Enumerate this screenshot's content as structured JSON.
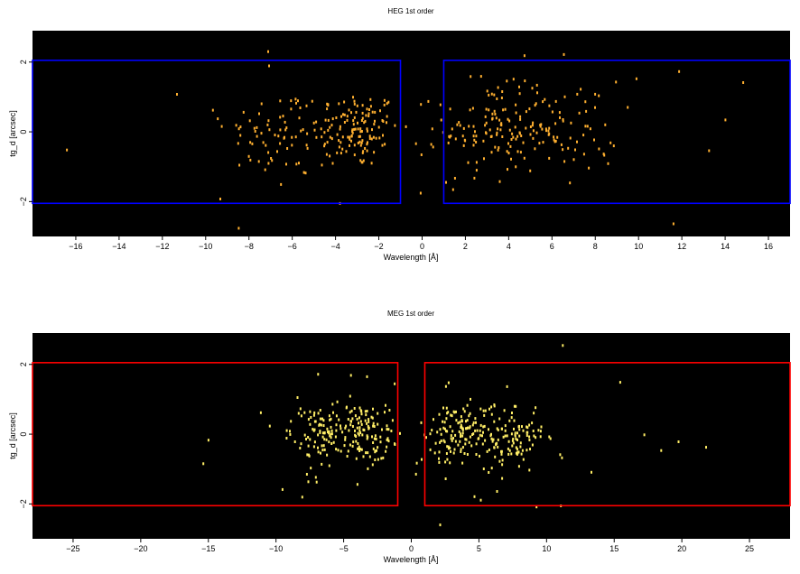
{
  "chart_data": [
    {
      "type": "scatter",
      "title": "HEG 1st order",
      "xlabel": "Wavelength [Å]",
      "ylabel": "tg_d [arcsec]",
      "xlim": [
        -18,
        17
      ],
      "ylim": [
        -3.0,
        2.9
      ],
      "xticks": [
        -16,
        -14,
        -12,
        -10,
        -8,
        -6,
        -4,
        -2,
        0,
        2,
        4,
        6,
        8,
        10,
        12,
        14,
        16
      ],
      "yticks": [
        -2,
        0,
        2
      ],
      "background": "#000000",
      "region_color": "#0000ff",
      "regions": [
        {
          "x": [
            -18,
            -1.0
          ],
          "y": [
            -2.05,
            2.05
          ]
        },
        {
          "x": [
            1.0,
            17
          ],
          "y": [
            -2.05,
            2.05
          ]
        }
      ],
      "series": [
        {
          "color": "#ffb030",
          "clusters": [
            {
              "xc": -3.1,
              "yc": 0.1,
              "sx": 1.0,
              "sy": 0.55,
              "n": 130
            },
            {
              "xc": -6.5,
              "yc": 0.0,
              "sx": 1.3,
              "sy": 0.65,
              "n": 70
            },
            {
              "xc": 3.2,
              "yc": 0.1,
              "sx": 1.1,
              "sy": 0.6,
              "n": 110
            },
            {
              "xc": 6.4,
              "yc": 0.2,
              "sx": 1.3,
              "sy": 0.65,
              "n": 70
            },
            {
              "xc": 0.0,
              "yc": 0.0,
              "sx": 9.5,
              "sy": 1.7,
              "n": 45
            }
          ]
        }
      ]
    },
    {
      "type": "scatter",
      "title": "MEG 1st order",
      "xlabel": "Wavelength [Å]",
      "ylabel": "tg_d [arcsec]",
      "xlim": [
        -28,
        28
      ],
      "ylim": [
        -3.0,
        2.9
      ],
      "xticks": [
        -25,
        -20,
        -15,
        -10,
        -5,
        0,
        5,
        10,
        15,
        20,
        25
      ],
      "yticks": [
        -2,
        0,
        2
      ],
      "background": "#000000",
      "region_color": "#ff0000",
      "regions": [
        {
          "x": [
            -28,
            -1.0
          ],
          "y": [
            -2.05,
            2.05
          ]
        },
        {
          "x": [
            1.0,
            28
          ],
          "y": [
            -2.05,
            2.05
          ]
        }
      ],
      "series": [
        {
          "color": "#ffee66",
          "clusters": [
            {
              "xc": -3.5,
              "yc": 0.1,
              "sx": 1.0,
              "sy": 0.45,
              "n": 110
            },
            {
              "xc": -7.0,
              "yc": 0.0,
              "sx": 1.1,
              "sy": 0.45,
              "n": 95
            },
            {
              "xc": 3.4,
              "yc": 0.0,
              "sx": 1.2,
              "sy": 0.45,
              "n": 120
            },
            {
              "xc": 7.2,
              "yc": 0.0,
              "sx": 1.3,
              "sy": 0.45,
              "n": 110
            },
            {
              "xc": 0.0,
              "yc": 0.0,
              "sx": 13.0,
              "sy": 1.6,
              "n": 45
            }
          ]
        }
      ]
    }
  ]
}
